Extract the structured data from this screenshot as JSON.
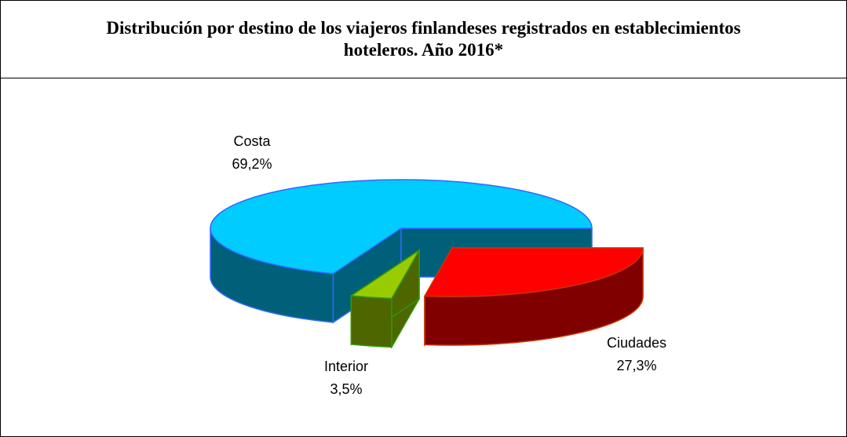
{
  "chart_data": {
    "type": "pie3d",
    "title": "Distribución por destino de los viajeros finlandeses registrados en establecimientos hoteleros. Año 2016*",
    "categories": [
      "Ciudades",
      "Interior",
      "Costa"
    ],
    "values": [
      27.3,
      3.5,
      69.2
    ],
    "value_labels": [
      "27,3%",
      "3,5%",
      "69,2%"
    ],
    "colors": [
      "#ff0000",
      "#99cc00",
      "#00ccff"
    ]
  }
}
